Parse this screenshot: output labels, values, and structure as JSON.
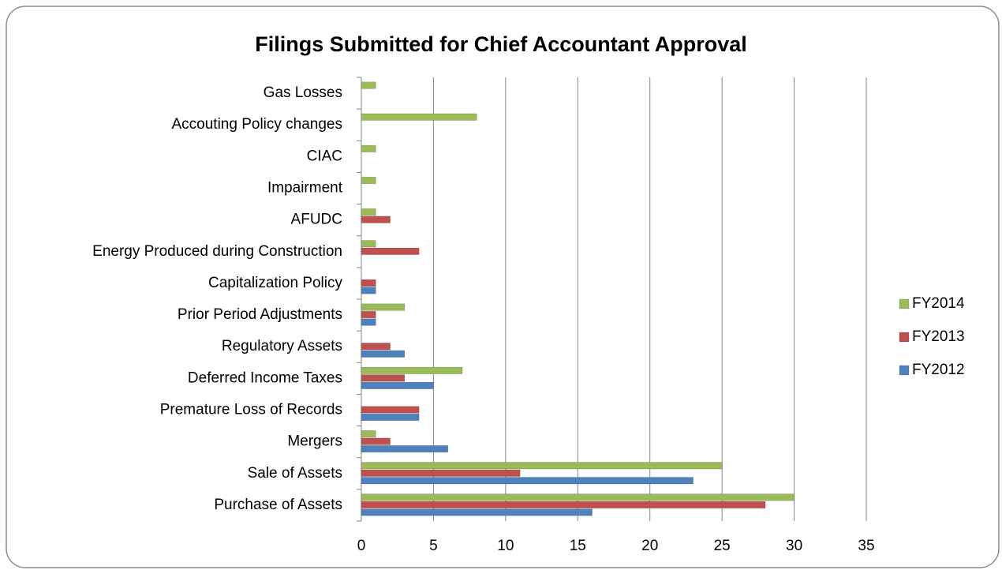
{
  "chart_data": {
    "type": "hbar",
    "title": "Filings Submitted for Chief Accountant Approval",
    "categories": [
      "Gas Losses",
      "Accouting Policy changes",
      "CIAC",
      "Impairment",
      "AFUDC",
      "Energy Produced during Construction",
      "Capitalization Policy",
      "Prior Period Adjustments",
      "Regulatory Assets",
      "Deferred Income Taxes",
      "Premature Loss of Records",
      "Mergers",
      "Sale of Assets",
      "Purchase of Assets"
    ],
    "series": [
      {
        "name": "FY2012",
        "color": "#4f81bd",
        "values": [
          0,
          0,
          0,
          0,
          0,
          0,
          1,
          1,
          3,
          5,
          4,
          6,
          23,
          16
        ]
      },
      {
        "name": "FY2013",
        "color": "#c0504d",
        "values": [
          0,
          0,
          0,
          0,
          2,
          4,
          1,
          1,
          2,
          3,
          4,
          2,
          11,
          28
        ]
      },
      {
        "name": "FY2014",
        "color": "#9bbb59",
        "values": [
          1,
          8,
          1,
          1,
          1,
          1,
          0,
          3,
          0,
          7,
          0,
          1,
          25,
          30
        ]
      }
    ],
    "xlim": [
      0,
      35
    ],
    "xticks": [
      0,
      5,
      10,
      15,
      20,
      25,
      30,
      35
    ],
    "grid": true,
    "legend": "right"
  }
}
